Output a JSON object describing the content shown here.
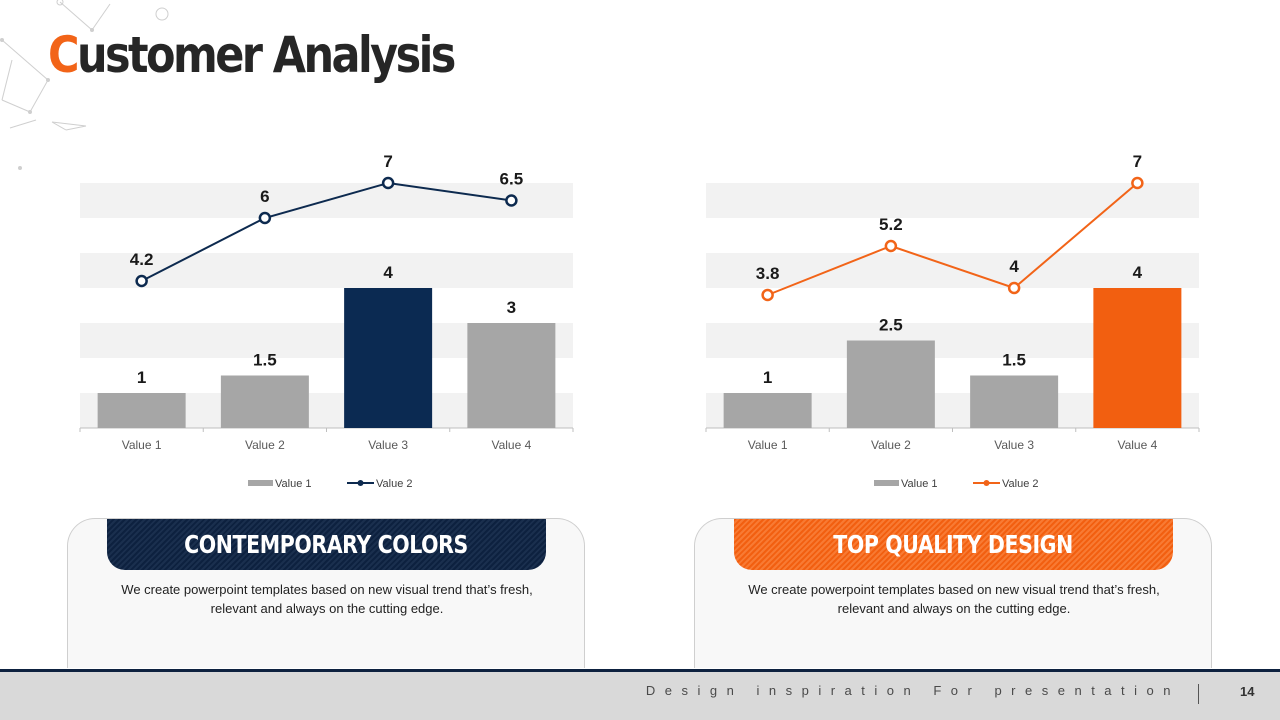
{
  "slide": {
    "title_first_letter": "C",
    "title_rest": "ustomer Analysis",
    "accent_color": "#f26418",
    "dark_color": "#0d213f"
  },
  "charts": [
    {
      "categories": [
        "Value 1",
        "Value 2",
        "Value 3",
        "Value 4"
      ],
      "legend": {
        "bar_label": "Value 1",
        "line_label": "Value 2"
      },
      "line_color": "#0d2a4f",
      "chart_data": {
        "type": "bar",
        "categories": [
          "Value 1",
          "Value 2",
          "Value 3",
          "Value 4"
        ],
        "series": [
          {
            "name": "Value 1",
            "type": "bar",
            "values": [
              1,
              1.5,
              4,
              3
            ]
          },
          {
            "name": "Value 2",
            "type": "line",
            "values": [
              4.2,
              6,
              7,
              6.5
            ]
          }
        ],
        "ylim": [
          0,
          7
        ],
        "grid": "alternating bands",
        "legend_position": "bottom",
        "highlight_category": "Value 3",
        "bar_colors": [
          "#a6a6a6",
          "#a6a6a6",
          "#0b2a52",
          "#a6a6a6"
        ]
      }
    },
    {
      "categories": [
        "Value 1",
        "Value 2",
        "Value 3",
        "Value 4"
      ],
      "legend": {
        "bar_label": "Value 1",
        "line_label": "Value 2"
      },
      "line_color": "#f26418",
      "chart_data": {
        "type": "bar",
        "categories": [
          "Value 1",
          "Value 2",
          "Value 3",
          "Value 4"
        ],
        "series": [
          {
            "name": "Value 1",
            "type": "bar",
            "values": [
              1,
              2.5,
              1.5,
              4
            ]
          },
          {
            "name": "Value 2",
            "type": "line",
            "values": [
              3.8,
              5.2,
              4,
              7
            ]
          }
        ],
        "ylim": [
          0,
          7
        ],
        "grid": "alternating bands",
        "legend_position": "bottom",
        "highlight_category": "Value 4",
        "bar_colors": [
          "#a6a6a6",
          "#a6a6a6",
          "#a6a6a6",
          "#f25f10"
        ]
      }
    }
  ],
  "cards": [
    {
      "heading": "CONTEMPORARY COLORS",
      "text": "We create powerpoint templates based on new visual trend that’s fresh, relevant and always on the cutting edge."
    },
    {
      "heading": "TOP QUALITY DESIGN",
      "text": "We create powerpoint templates based on new visual trend that’s fresh, relevant and always on the cutting edge."
    }
  ],
  "footer": {
    "tagline": "Design inspiration For presentation",
    "page_number": "14"
  }
}
